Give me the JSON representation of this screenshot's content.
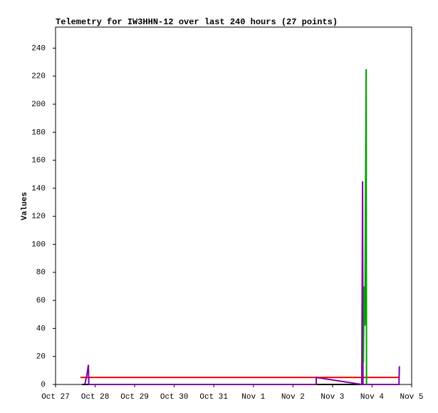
{
  "chart_data": {
    "type": "line",
    "title": "Telemetry for IW3HHN-12 over last 240 hours (27 points)",
    "y_label": "Values",
    "xlim": [
      0,
      9
    ],
    "xticks": [
      {
        "value": 0,
        "label": "Oct 27"
      },
      {
        "value": 1,
        "label": "Oct 28"
      },
      {
        "value": 2,
        "label": "Oct 29"
      },
      {
        "value": 3,
        "label": "Oct 30"
      },
      {
        "value": 4,
        "label": "Oct 31"
      },
      {
        "value": 5,
        "label": "Nov 1"
      },
      {
        "value": 6,
        "label": "Nov 2"
      },
      {
        "value": 7,
        "label": "Nov 3"
      },
      {
        "value": 8,
        "label": "Nov 4"
      },
      {
        "value": 9,
        "label": "Nov 5"
      }
    ],
    "ylim": [
      0,
      255
    ],
    "yticks": [
      0,
      20,
      40,
      60,
      80,
      100,
      120,
      140,
      160,
      180,
      200,
      220,
      240
    ],
    "series": [
      {
        "color": "#000000",
        "x": [
          0.67,
          8.69
        ],
        "values": [
          0,
          0
        ]
      },
      {
        "color": "#ff0000",
        "x": [
          0.63,
          8.69
        ],
        "values": [
          5,
          5
        ]
      },
      {
        "color": "#7f00a0",
        "x": [
          0.74,
          0.8,
          0.83,
          0.84,
          6.59,
          6.59,
          7.74,
          7.76,
          7.77,
          8.68,
          8.69
        ],
        "values": [
          0,
          8,
          14,
          0,
          0,
          5,
          0,
          145,
          0,
          0,
          13
        ]
      },
      {
        "color": "#00a000",
        "x": [
          7.78,
          7.8,
          7.82,
          7.84,
          7.85,
          7.86
        ],
        "values": [
          15,
          70,
          42,
          168,
          225,
          0
        ]
      }
    ]
  }
}
